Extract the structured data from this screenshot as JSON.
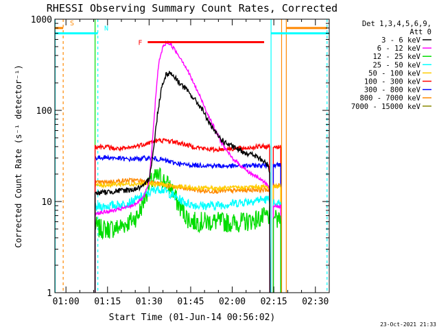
{
  "chart_data": {
    "type": "line",
    "title": "RHESSI Observing Summary Count Rates, Corrected",
    "xlabel": "Start Time (01-Jun-14 00:56:02)",
    "ylabel": "Corrected Count Rate (s⁻¹ detector⁻¹)",
    "yscale": "log",
    "ylim": [
      1,
      1000
    ],
    "xlim_minutes": [
      56.0,
      155.0
    ],
    "x_ticks": [
      {
        "label": "01:00",
        "minute": 60
      },
      {
        "label": "01:15",
        "minute": 75
      },
      {
        "label": "01:30",
        "minute": 90
      },
      {
        "label": "01:45",
        "minute": 105
      },
      {
        "label": "02:00",
        "minute": 120
      },
      {
        "label": "02:15",
        "minute": 135
      },
      {
        "label": "02:30",
        "minute": 150
      }
    ],
    "y_ticks": [
      {
        "label": "1",
        "value": 1
      },
      {
        "label": "10",
        "value": 10
      },
      {
        "label": "100",
        "value": 100
      },
      {
        "label": "1000",
        "value": 1000
      }
    ],
    "legend_header": [
      "Det 1,3,4,5,6,9,",
      "Att 0"
    ],
    "legend_position": "top-right",
    "series": [
      {
        "name": "3 - 6 keV",
        "color": "#000000",
        "points": [
          [
            70.5,
            12
          ],
          [
            72,
            12.5
          ],
          [
            78,
            13
          ],
          [
            84,
            13.5
          ],
          [
            88,
            14.5
          ],
          [
            90,
            18
          ],
          [
            91.5,
            35
          ],
          [
            93,
            90
          ],
          [
            94.5,
            180
          ],
          [
            96,
            245
          ],
          [
            97.5,
            260
          ],
          [
            99,
            235
          ],
          [
            101,
            200
          ],
          [
            103,
            175
          ],
          [
            105,
            148
          ],
          [
            107,
            125
          ],
          [
            109,
            105
          ],
          [
            111,
            80
          ],
          [
            113,
            62
          ],
          [
            115,
            52
          ],
          [
            117,
            45
          ],
          [
            120,
            40
          ],
          [
            124,
            35
          ],
          [
            128,
            32
          ],
          [
            131,
            28
          ],
          [
            133,
            25
          ],
          [
            133.6,
            20
          ]
        ]
      },
      {
        "name": "6 - 12 keV",
        "color": "#ff00ff",
        "points": [
          [
            70.5,
            7.5
          ],
          [
            72,
            7.5
          ],
          [
            78,
            8
          ],
          [
            84,
            9
          ],
          [
            88,
            11
          ],
          [
            90,
            16
          ],
          [
            91.5,
            60
          ],
          [
            92.5,
            160
          ],
          [
            93.5,
            330
          ],
          [
            95,
            500
          ],
          [
            96.5,
            560
          ],
          [
            98,
            520
          ],
          [
            100,
            430
          ],
          [
            102,
            350
          ],
          [
            104,
            270
          ],
          [
            106,
            200
          ],
          [
            108,
            150
          ],
          [
            110,
            110
          ],
          [
            112,
            80
          ],
          [
            114,
            60
          ],
          [
            116,
            45
          ],
          [
            118,
            36
          ],
          [
            120,
            30
          ],
          [
            123,
            25
          ],
          [
            126,
            21
          ],
          [
            129,
            18.5
          ],
          [
            132,
            16
          ],
          [
            133.6,
            14
          ]
        ]
      },
      {
        "name": "12 - 25 keV",
        "color": "#00dd00",
        "points": [
          [
            70.5,
            5.5
          ],
          [
            72,
            5
          ],
          [
            76,
            5
          ],
          [
            79,
            5.2
          ],
          [
            83,
            6
          ],
          [
            86,
            7
          ],
          [
            88,
            10
          ],
          [
            90,
            15
          ],
          [
            92,
            18
          ],
          [
            94,
            19
          ],
          [
            96,
            16
          ],
          [
            98,
            14
          ],
          [
            100,
            10
          ],
          [
            102,
            8
          ],
          [
            104,
            6.5
          ],
          [
            106,
            6
          ],
          [
            110,
            6
          ],
          [
            115,
            6
          ],
          [
            120,
            5.8
          ],
          [
            125,
            6
          ],
          [
            130,
            6.5
          ],
          [
            133.6,
            7
          ]
        ]
      },
      {
        "name": "25 - 50 keV",
        "color": "#00ffff",
        "points": [
          [
            70.5,
            8.5
          ],
          [
            72,
            8.8
          ],
          [
            76,
            9
          ],
          [
            80,
            9.3
          ],
          [
            84,
            10
          ],
          [
            88,
            11.5
          ],
          [
            91,
            13
          ],
          [
            93,
            14
          ],
          [
            95,
            13.5
          ],
          [
            98,
            12
          ],
          [
            101,
            10.5
          ],
          [
            104,
            9.5
          ],
          [
            108,
            9
          ],
          [
            112,
            9
          ],
          [
            116,
            9.2
          ],
          [
            120,
            9.5
          ],
          [
            125,
            10
          ],
          [
            130,
            10.5
          ],
          [
            133.6,
            10.5
          ]
        ]
      },
      {
        "name": "50 - 100 keV",
        "color": "#ffcc00",
        "points": [
          [
            70.5,
            15
          ],
          [
            80,
            15.5
          ],
          [
            88,
            15.8
          ],
          [
            94,
            15.5
          ],
          [
            100,
            14.5
          ],
          [
            108,
            14
          ],
          [
            116,
            14
          ],
          [
            124,
            14.2
          ],
          [
            130,
            14.5
          ],
          [
            133.6,
            14.5
          ]
        ]
      },
      {
        "name": "100 - 300 keV",
        "color": "#ff0000",
        "points": [
          [
            70.5,
            40
          ],
          [
            74,
            40
          ],
          [
            78,
            38
          ],
          [
            82,
            38
          ],
          [
            86,
            41
          ],
          [
            90,
            44
          ],
          [
            94,
            47
          ],
          [
            98,
            46
          ],
          [
            102,
            43
          ],
          [
            106,
            40
          ],
          [
            110,
            38
          ],
          [
            114,
            37
          ],
          [
            118,
            38
          ],
          [
            122,
            38
          ],
          [
            126,
            39
          ],
          [
            130,
            40
          ],
          [
            133.6,
            40
          ]
        ]
      },
      {
        "name": "300 - 800 keV",
        "color": "#0000ff",
        "points": [
          [
            70.5,
            30
          ],
          [
            74,
            30.5
          ],
          [
            78,
            30
          ],
          [
            82,
            29
          ],
          [
            86,
            29.5
          ],
          [
            90,
            30
          ],
          [
            94,
            29
          ],
          [
            98,
            27
          ],
          [
            102,
            25.5
          ],
          [
            106,
            25
          ],
          [
            110,
            25
          ],
          [
            116,
            24.5
          ],
          [
            122,
            24.5
          ],
          [
            128,
            24.8
          ],
          [
            133.6,
            25
          ]
        ]
      },
      {
        "name": "800 - 7000 keV",
        "color": "#ff8800",
        "points": [
          [
            70.5,
            16
          ],
          [
            76,
            16.5
          ],
          [
            82,
            17
          ],
          [
            86,
            17
          ],
          [
            90,
            16.5
          ],
          [
            94,
            15.5
          ],
          [
            98,
            14.5
          ],
          [
            102,
            14
          ],
          [
            106,
            13.5
          ],
          [
            110,
            13
          ],
          [
            116,
            13
          ],
          [
            122,
            13.2
          ],
          [
            128,
            13.5
          ],
          [
            133.6,
            13.5
          ]
        ]
      },
      {
        "name": "7000 - 15000 keV",
        "color": "#888800",
        "points": []
      }
    ],
    "second_interval": [
      {
        "series": "100 - 300 keV",
        "points": [
          [
            134.8,
            40
          ],
          [
            137.5,
            40
          ]
        ]
      },
      {
        "series": "300 - 800 keV",
        "points": [
          [
            134.8,
            25
          ],
          [
            137.5,
            25
          ]
        ]
      },
      {
        "series": "800 - 7000 keV",
        "points": [
          [
            134.8,
            15
          ],
          [
            137.5,
            15
          ]
        ]
      },
      {
        "series": "50 - 100 keV",
        "points": [
          [
            134.8,
            14.5
          ],
          [
            137.5,
            14.5
          ]
        ]
      },
      {
        "series": "25 - 50 keV",
        "points": [
          [
            134.8,
            10
          ],
          [
            137.5,
            10
          ]
        ]
      },
      {
        "series": "6 - 12 keV",
        "points": [
          [
            134.8,
            9
          ],
          [
            137.5,
            8.8
          ]
        ]
      },
      {
        "series": "12 - 25 keV",
        "points": [
          [
            134.8,
            6.5
          ],
          [
            137.5,
            6.5
          ]
        ]
      }
    ],
    "flag_bars": [
      {
        "label": "S",
        "color": "#ff8800",
        "start": 56.0,
        "end": 59.0,
        "level": 800
      },
      {
        "label": "N",
        "color": "#00ffff",
        "start": 56.0,
        "end": 71.5,
        "level": 700
      },
      {
        "label": "F",
        "color": "#ff0000",
        "start": 89.5,
        "end": 131.5,
        "level": 560
      },
      {
        "label": "",
        "color": "#00ffff",
        "start": 134.0,
        "end": 155.0,
        "level": 700
      },
      {
        "label": "",
        "color": "#ff8800",
        "start": 139.5,
        "end": 154.2,
        "level": 800
      }
    ],
    "vertical_markers": [
      {
        "color": "#00ffff",
        "style": "solid",
        "at": 56.1
      },
      {
        "color": "#ff8800",
        "style": "dashed",
        "at": 59.0
      },
      {
        "color": "#00dd00",
        "style": "solid",
        "at": 70.5
      },
      {
        "color": "#00ffff",
        "style": "dashed",
        "at": 71.5
      },
      {
        "color": "#00ffff",
        "style": "solid",
        "at": 134.0
      },
      {
        "color": "#ff8800",
        "style": "solid",
        "at": 137.8
      },
      {
        "color": "#ff8800",
        "style": "solid",
        "at": 139.5
      },
      {
        "color": "#00ffff",
        "style": "dashed",
        "at": 154.2
      }
    ],
    "footer_date": "23-Oct-2021 21:33"
  }
}
